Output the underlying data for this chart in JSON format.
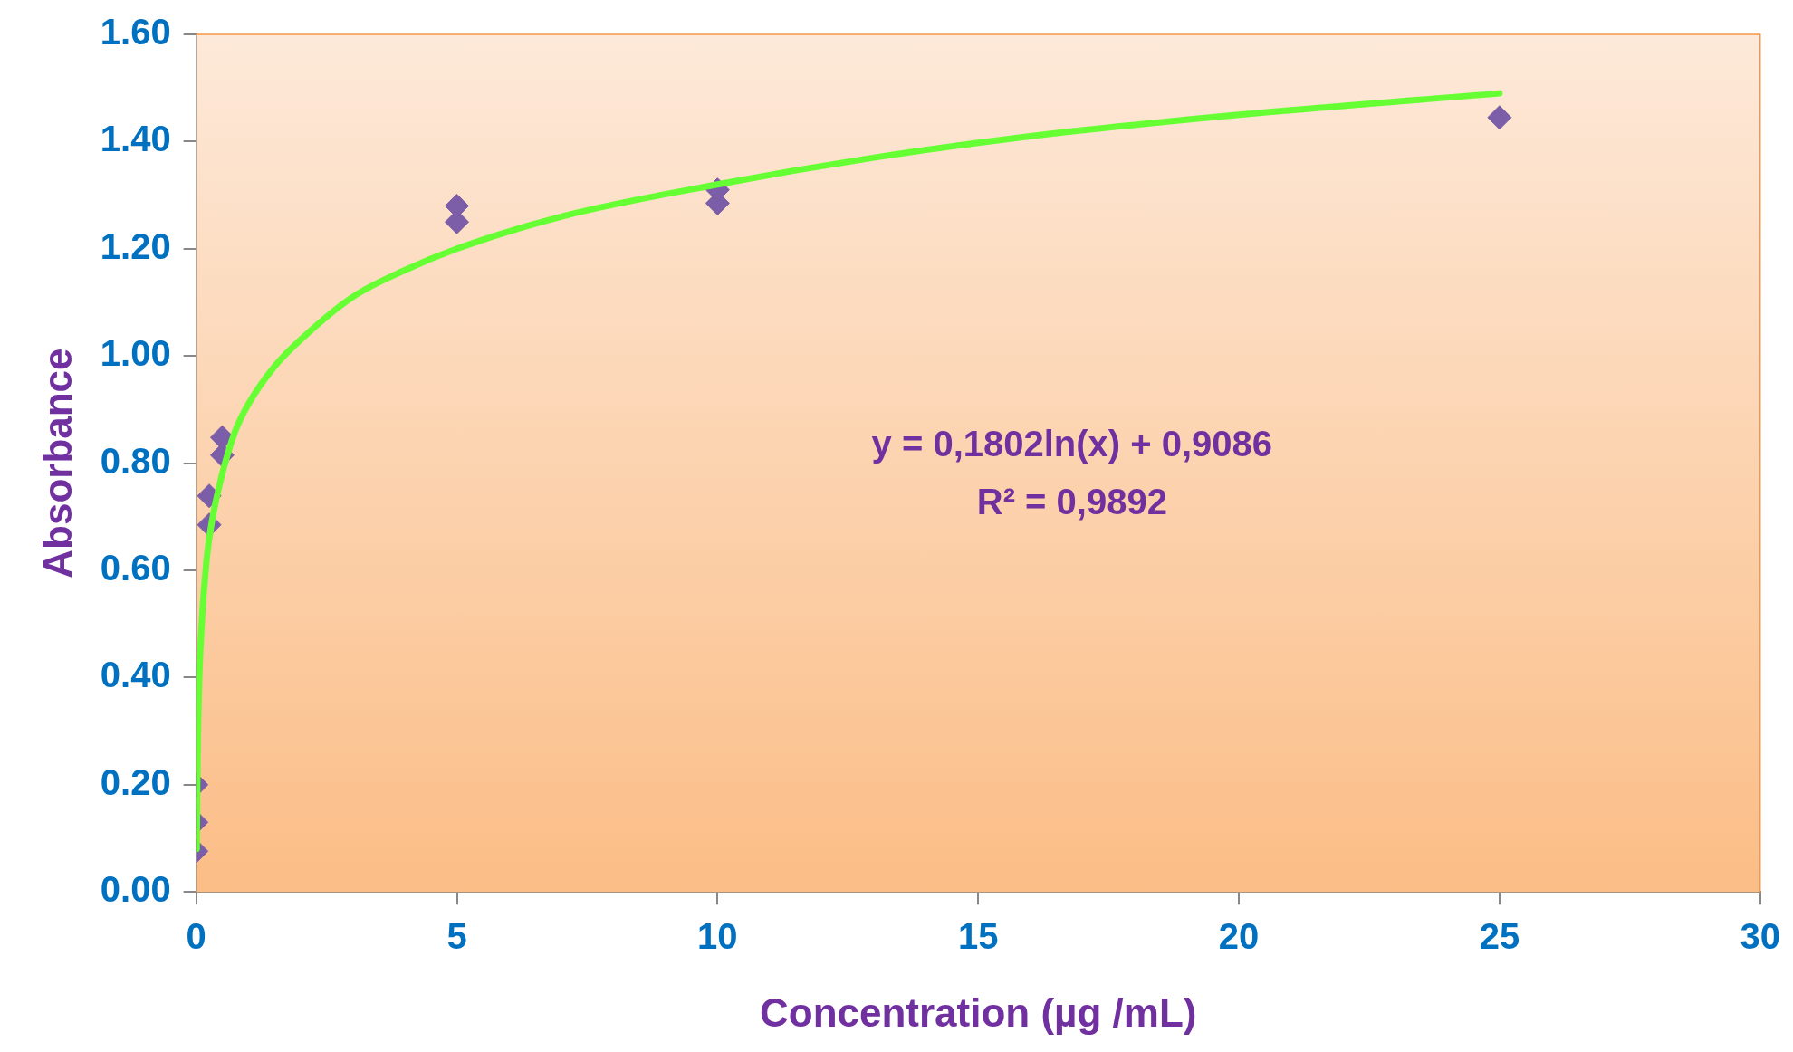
{
  "chart_data": {
    "type": "scatter",
    "xlabel": "Concentration (µg /mL)",
    "ylabel": "Absorbance",
    "xlim": [
      0,
      30
    ],
    "xticks": [
      0,
      5,
      10,
      15,
      20,
      25,
      30
    ],
    "ylim": [
      0,
      1.6
    ],
    "yticks": [
      {
        "value": 0,
        "label": "0.00"
      },
      {
        "value": 0.2,
        "label": "0.20"
      },
      {
        "value": 0.4,
        "label": "0.40"
      },
      {
        "value": 0.6,
        "label": "0.60"
      },
      {
        "value": 0.8,
        "label": "0.80"
      },
      {
        "value": 1,
        "label": "1.00"
      },
      {
        "value": 1.2,
        "label": "1.20"
      },
      {
        "value": 1.4,
        "label": "1.40"
      },
      {
        "value": 1.6,
        "label": "1.60"
      }
    ],
    "grid": false,
    "legend": false,
    "marker": "diamond",
    "series": [
      {
        "type": "scatter",
        "color": "#7b5ea7",
        "x": [
          0,
          0,
          0,
          0.25,
          0.25,
          0.5,
          0.5,
          5,
          5,
          10,
          10,
          25
        ],
        "values": [
          0.076,
          0.13,
          0.2,
          0.685,
          0.739,
          0.815,
          0.848,
          1.25,
          1.28,
          1.285,
          1.31,
          1.445
        ]
      },
      {
        "type": "line",
        "color": "#66ff33",
        "marker": "none",
        "x": [
          0.01,
          0.02,
          0.05,
          0.1,
          0.2,
          0.3,
          0.5,
          0.75,
          1,
          1.5,
          2,
          3,
          4,
          5,
          7,
          10,
          13,
          16,
          20,
          25
        ],
        "values": [
          0.08,
          0.2,
          0.37,
          0.49,
          0.62,
          0.69,
          0.78,
          0.86,
          0.91,
          0.98,
          1.03,
          1.11,
          1.16,
          1.2,
          1.26,
          1.32,
          1.37,
          1.41,
          1.45,
          1.49
        ]
      }
    ],
    "annotations": [
      "y = 0,1802ln(x) + 0,9086",
      "R² = 0,9892"
    ]
  }
}
